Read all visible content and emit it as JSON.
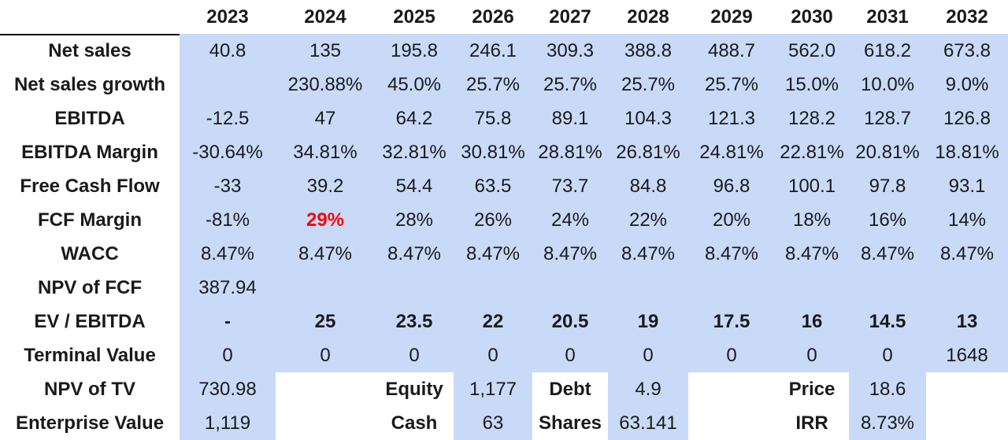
{
  "colors": {
    "shade": "#c9daf8",
    "highlight": "#ff0000",
    "border": "#000000"
  },
  "years": [
    "2023",
    "2024",
    "2025",
    "2026",
    "2027",
    "2028",
    "2029",
    "2030",
    "2031",
    "2032"
  ],
  "rows": [
    {
      "label": "Net sales",
      "values": [
        "40.8",
        "135",
        "195.8",
        "246.1",
        "309.3",
        "388.8",
        "488.7",
        "562.0",
        "618.2",
        "673.8"
      ]
    },
    {
      "label": "Net sales growth",
      "values": [
        "",
        "230.88%",
        "45.0%",
        "25.7%",
        "25.7%",
        "25.7%",
        "25.7%",
        "15.0%",
        "10.0%",
        "9.0%"
      ]
    },
    {
      "label": "EBITDA",
      "values": [
        "-12.5",
        "47",
        "64.2",
        "75.8",
        "89.1",
        "104.3",
        "121.3",
        "128.2",
        "128.7",
        "126.8"
      ]
    },
    {
      "label": "EBITDA Margin",
      "values": [
        "-30.64%",
        "34.81%",
        "32.81%",
        "30.81%",
        "28.81%",
        "26.81%",
        "24.81%",
        "22.81%",
        "20.81%",
        "18.81%"
      ]
    },
    {
      "label": "Free Cash Flow",
      "values": [
        "-33",
        "39.2",
        "54.4",
        "63.5",
        "73.7",
        "84.8",
        "96.8",
        "100.1",
        "97.8",
        "93.1"
      ]
    },
    {
      "label": "FCF Margin",
      "values": [
        "-81%",
        "29%",
        "28%",
        "26%",
        "24%",
        "22%",
        "20%",
        "18%",
        "16%",
        "14%"
      ]
    },
    {
      "label": "WACC",
      "values": [
        "8.47%",
        "8.47%",
        "8.47%",
        "8.47%",
        "8.47%",
        "8.47%",
        "8.47%",
        "8.47%",
        "8.47%",
        "8.47%"
      ]
    },
    {
      "label": "NPV of FCF",
      "values": [
        "387.94",
        "",
        "",
        "",
        "",
        "",
        "",
        "",
        "",
        ""
      ]
    },
    {
      "label": "EV / EBITDA",
      "values": [
        "-",
        "25",
        "23.5",
        "22",
        "20.5",
        "19",
        "17.5",
        "16",
        "14.5",
        "13"
      ]
    },
    {
      "label": "Terminal Value",
      "values": [
        "0",
        "0",
        "0",
        "0",
        "0",
        "0",
        "0",
        "0",
        "0",
        "1648"
      ]
    }
  ],
  "summary": {
    "npv_tv": {
      "label": "NPV of TV",
      "value": "730.98"
    },
    "enterprise_value": {
      "label": "Enterprise Value",
      "value": "1,119"
    },
    "equity": {
      "label": "Equity",
      "value": "1,177"
    },
    "cash": {
      "label": "Cash",
      "value": "63"
    },
    "debt": {
      "label": "Debt",
      "value": "4.9"
    },
    "shares": {
      "label": "Shares",
      "value": "63.141"
    },
    "price": {
      "label": "Price",
      "value": "18.6"
    },
    "irr": {
      "label": "IRR",
      "value": "8.73%"
    }
  }
}
